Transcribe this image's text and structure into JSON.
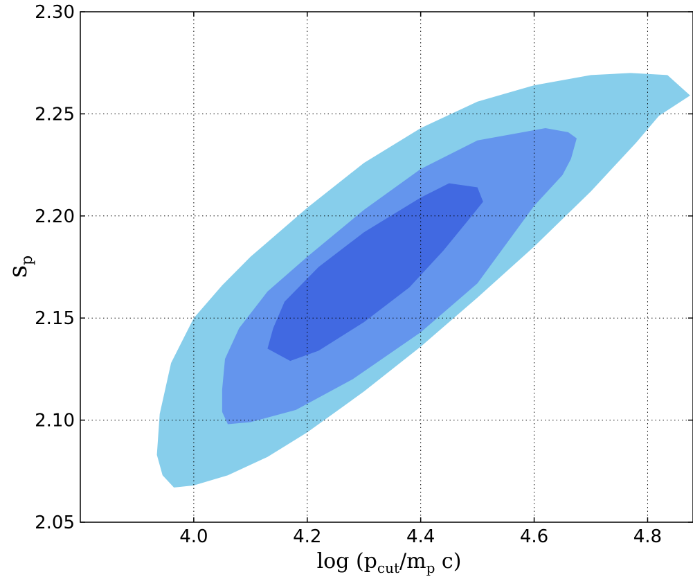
{
  "chart_data": {
    "type": "contour",
    "title": "",
    "xlabel": {
      "prefix": "log (p",
      "sub1": "cut",
      "mid": "/m",
      "sub2": "p",
      "suffix": " c)"
    },
    "ylabel": {
      "main": "s",
      "sub": "p"
    },
    "xlim": [
      3.8,
      4.88
    ],
    "ylim": [
      2.05,
      2.3
    ],
    "x_ticks": [
      4.0,
      4.2,
      4.4,
      4.6,
      4.8
    ],
    "x_tick_labels": [
      "4.0",
      "4.2",
      "4.4",
      "4.6",
      "4.8"
    ],
    "y_ticks": [
      2.05,
      2.1,
      2.15,
      2.2,
      2.25,
      2.3
    ],
    "y_tick_labels": [
      "2.05",
      "2.10",
      "2.15",
      "2.20",
      "2.25",
      "2.30"
    ],
    "grid": true,
    "contour_levels": [
      {
        "name": "",
        "color": "#87ceeb",
        "points": [
          [
            3.935,
            2.083
          ],
          [
            3.945,
            2.073
          ],
          [
            3.965,
            2.067
          ],
          [
            4.0,
            2.068
          ],
          [
            4.06,
            2.073
          ],
          [
            4.13,
            2.082
          ],
          [
            4.2,
            2.094
          ],
          [
            4.3,
            2.114
          ],
          [
            4.4,
            2.136
          ],
          [
            4.5,
            2.16
          ],
          [
            4.6,
            2.185
          ],
          [
            4.7,
            2.212
          ],
          [
            4.78,
            2.236
          ],
          [
            4.82,
            2.249
          ],
          [
            4.875,
            2.259
          ],
          [
            4.835,
            2.269
          ],
          [
            4.77,
            2.27
          ],
          [
            4.7,
            2.269
          ],
          [
            4.6,
            2.264
          ],
          [
            4.5,
            2.256
          ],
          [
            4.4,
            2.243
          ],
          [
            4.3,
            2.226
          ],
          [
            4.2,
            2.204
          ],
          [
            4.1,
            2.18
          ],
          [
            4.05,
            2.166
          ],
          [
            4.0,
            2.15
          ],
          [
            3.96,
            2.128
          ],
          [
            3.94,
            2.103
          ]
        ]
      },
      {
        "name": "",
        "color": "#6495ed",
        "points": [
          [
            4.05,
            2.104
          ],
          [
            4.06,
            2.098
          ],
          [
            4.1,
            2.099
          ],
          [
            4.18,
            2.105
          ],
          [
            4.28,
            2.12
          ],
          [
            4.4,
            2.143
          ],
          [
            4.5,
            2.167
          ],
          [
            4.6,
            2.205
          ],
          [
            4.65,
            2.22
          ],
          [
            4.665,
            2.228
          ],
          [
            4.675,
            2.238
          ],
          [
            4.66,
            2.241
          ],
          [
            4.62,
            2.243
          ],
          [
            4.5,
            2.237
          ],
          [
            4.4,
            2.223
          ],
          [
            4.3,
            2.203
          ],
          [
            4.2,
            2.18
          ],
          [
            4.13,
            2.163
          ],
          [
            4.08,
            2.145
          ],
          [
            4.055,
            2.13
          ],
          [
            4.05,
            2.115
          ]
        ]
      },
      {
        "name": "",
        "color": "#4169e1",
        "points": [
          [
            4.13,
            2.135
          ],
          [
            4.17,
            2.129
          ],
          [
            4.22,
            2.134
          ],
          [
            4.3,
            2.148
          ],
          [
            4.38,
            2.165
          ],
          [
            4.44,
            2.183
          ],
          [
            4.49,
            2.2
          ],
          [
            4.51,
            2.207
          ],
          [
            4.5,
            2.214
          ],
          [
            4.45,
            2.216
          ],
          [
            4.4,
            2.209
          ],
          [
            4.3,
            2.192
          ],
          [
            4.22,
            2.175
          ],
          [
            4.16,
            2.158
          ],
          [
            4.14,
            2.145
          ]
        ]
      }
    ]
  }
}
